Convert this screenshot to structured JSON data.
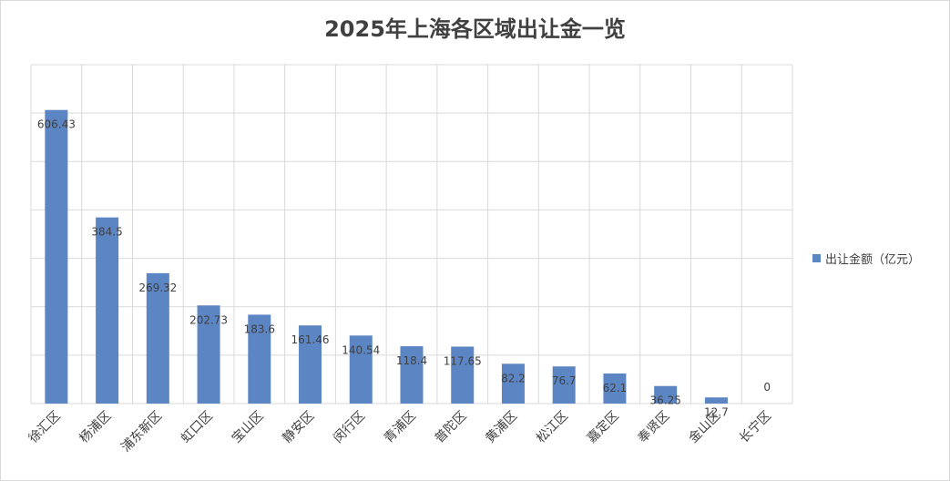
{
  "colors": {
    "bar": "#5b85c3",
    "grid": "#d9d9d9"
  },
  "chart_data": {
    "type": "bar",
    "title": "2025年上海各区域出让金一览",
    "categories": [
      "徐汇区",
      "杨浦区",
      "浦东新区",
      "虹口区",
      "宝山区",
      "静安区",
      "闵行区",
      "青浦区",
      "普陀区",
      "黄浦区",
      "松江区",
      "嘉定区",
      "奉贤区",
      "金山区",
      "长宁区"
    ],
    "series": [
      {
        "name": "出让金额（亿元）",
        "values": [
          606.43,
          384.5,
          269.32,
          202.73,
          183.6,
          161.46,
          140.54,
          118.4,
          117.65,
          82.2,
          76.7,
          62.1,
          36.25,
          12.7,
          0
        ],
        "labels": [
          "606.43",
          "384.5",
          "269.32",
          "202.73",
          "183.6",
          "161.46",
          "140.54",
          "118.4",
          "117.65",
          "82.2",
          "76.7",
          "62.1",
          "36.25",
          "12.7",
          "0"
        ]
      }
    ],
    "ylim": [
      0,
      700
    ],
    "y_gridlines": [
      0,
      100,
      200,
      300,
      400,
      500,
      600,
      700
    ],
    "xlabel": "",
    "ylabel": "",
    "y_tick_labels_shown": false,
    "grid": true,
    "legend_position": "right"
  }
}
